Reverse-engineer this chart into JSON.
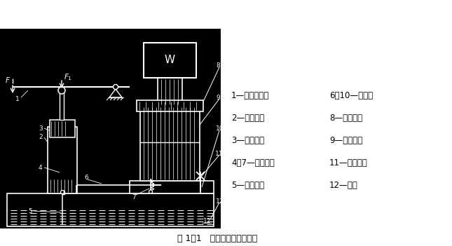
{
  "title": "图 1－1   液压千斤顶工作原理",
  "bg_color": "#000000",
  "fg_color": "#ffffff",
  "white": "#ffffff",
  "black": "#000000",
  "legend_items_col1": [
    "1—杠杆手柄；",
    "2—小缸体；",
    "3—小活塞；",
    "4、7—单向阀；",
    "5—吸油管；"
  ],
  "legend_items_col2": [
    "6、10—管道；",
    "8—大活塞；",
    "9—大缸体；",
    "11—截止阀；",
    "12—油箱"
  ],
  "fig_width": 6.45,
  "fig_height": 3.51,
  "dpi": 100
}
